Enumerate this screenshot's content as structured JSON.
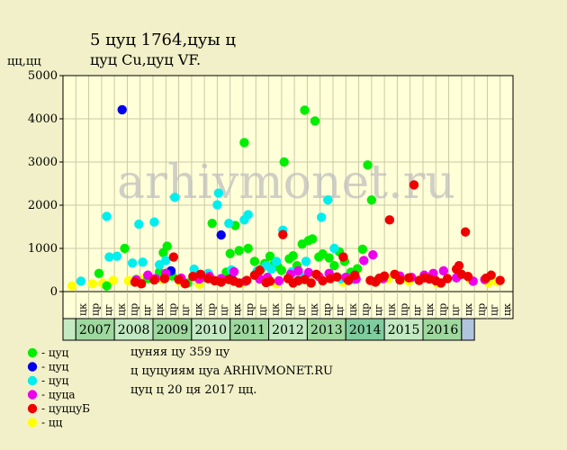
{
  "header": {
    "title": "5  цуц 1764,цуы ц",
    "subtitle": "цуц Cu,цуц VF.",
    "y_unit": "цц,цц"
  },
  "watermark": "arhivmonet.ru",
  "legend": [
    {
      "color": "#00ee00",
      "label": "- цуц"
    },
    {
      "color": "#0000ee",
      "label": "- цуц"
    },
    {
      "color": "#00eeee",
      "label": "- цуц"
    },
    {
      "color": "#ee00ee",
      "label": "- цуца"
    },
    {
      "color": "#ee0000",
      "label": "- цуццуБ"
    },
    {
      "color": "#ffff00",
      "label": "- цц"
    }
  ],
  "notes": [
    "цуняя цу 359 цу",
    "ц цуцуиям цуа ARHIVMONET.RU",
    "цуц ц 20 ця 2017 цц."
  ],
  "chart_data": {
    "type": "scatter",
    "ylim": [
      0,
      5000
    ],
    "yticks": [
      0,
      1000,
      2000,
      3000,
      4000,
      5000
    ],
    "year_bands": [
      {
        "label": "",
        "color": "#c4eac4"
      },
      {
        "label": "2007",
        "color": "#9fd89f"
      },
      {
        "label": "2008",
        "color": "#c4eac4"
      },
      {
        "label": "2009",
        "color": "#9fd89f"
      },
      {
        "label": "2010",
        "color": "#c4eac4"
      },
      {
        "label": "2011",
        "color": "#9fd89f"
      },
      {
        "label": "2012",
        "color": "#c4eac4"
      },
      {
        "label": "2013",
        "color": "#9fd89f"
      },
      {
        "label": "2014",
        "color": "#7fcc9f"
      },
      {
        "label": "2015",
        "color": "#c4eac4"
      },
      {
        "label": "2016",
        "color": "#9fd89f"
      },
      {
        "label": "",
        "color": "#b0c4de"
      }
    ],
    "year_band_months": [
      1,
      3,
      3,
      3,
      3,
      3,
      3,
      3,
      3,
      3,
      3,
      1
    ],
    "x_tick_labels": [
      "цк",
      "цр",
      "цг",
      "цк",
      "цр",
      "цг",
      "цк",
      "цр",
      "цг",
      "цк",
      "цр",
      "цг",
      "цк",
      "цр",
      "цг",
      "цк",
      "цр",
      "цг",
      "цк",
      "цр",
      "цг",
      "цк",
      "цр",
      "цг",
      "цк",
      "цр",
      "цг",
      "цк",
      "цр",
      "цг",
      "цк",
      "цр",
      "цг",
      "цк"
    ],
    "series": [
      {
        "color": "#ffff00",
        "points": [
          [
            0.2,
            130
          ],
          [
            1.8,
            180
          ],
          [
            2.6,
            200
          ],
          [
            3.4,
            260
          ],
          [
            4.6,
            250
          ],
          [
            5.8,
            300
          ],
          [
            7.2,
            280
          ],
          [
            8.6,
            230
          ],
          [
            10.1,
            170
          ],
          [
            11.4,
            260
          ],
          [
            13.4,
            200
          ],
          [
            16.1,
            180
          ],
          [
            18.6,
            260
          ],
          [
            21.3,
            220
          ],
          [
            24.8,
            300
          ],
          [
            26.4,
            240
          ],
          [
            28.6,
            200
          ],
          [
            31.2,
            270
          ],
          [
            32.6,
            210
          ],
          [
            33.3,
            230
          ]
        ]
      },
      {
        "color": "#00ee00",
        "points": [
          [
            2.3,
            420
          ],
          [
            2.9,
            130
          ],
          [
            4.3,
            1000
          ],
          [
            5.2,
            280
          ],
          [
            6.1,
            300
          ],
          [
            7.0,
            450
          ],
          [
            7.3,
            900
          ],
          [
            7.6,
            1050
          ],
          [
            8.0,
            360
          ],
          [
            9.2,
            200
          ],
          [
            10.6,
            320
          ],
          [
            11.1,
            1580
          ],
          [
            11.6,
            250
          ],
          [
            12.2,
            450
          ],
          [
            12.5,
            880
          ],
          [
            12.9,
            1530
          ],
          [
            13.2,
            950
          ],
          [
            13.6,
            3450
          ],
          [
            13.9,
            1000
          ],
          [
            14.4,
            700
          ],
          [
            14.9,
            520
          ],
          [
            15.2,
            650
          ],
          [
            15.6,
            820
          ],
          [
            15.9,
            620
          ],
          [
            16.2,
            580
          ],
          [
            16.5,
            490
          ],
          [
            16.7,
            3000
          ],
          [
            17.1,
            760
          ],
          [
            17.4,
            830
          ],
          [
            17.7,
            600
          ],
          [
            18.1,
            1100
          ],
          [
            18.3,
            4200
          ],
          [
            18.6,
            1180
          ],
          [
            18.9,
            1220
          ],
          [
            19.1,
            3950
          ],
          [
            19.4,
            800
          ],
          [
            19.7,
            870
          ],
          [
            20.2,
            780
          ],
          [
            20.6,
            600
          ],
          [
            21.0,
            920
          ],
          [
            21.4,
            700
          ],
          [
            21.9,
            450
          ],
          [
            22.4,
            530
          ],
          [
            22.8,
            980
          ],
          [
            23.2,
            2930
          ],
          [
            23.5,
            2120
          ],
          [
            23.9,
            250
          ]
        ]
      },
      {
        "color": "#0000ee",
        "points": [
          [
            4.1,
            4210
          ],
          [
            7.9,
            480
          ],
          [
            11.8,
            1310
          ],
          [
            12.6,
            300
          ]
        ]
      },
      {
        "color": "#00eeee",
        "points": [
          [
            0.9,
            240
          ],
          [
            2.9,
            1740
          ],
          [
            3.1,
            800
          ],
          [
            3.7,
            820
          ],
          [
            4.9,
            660
          ],
          [
            5.4,
            1560
          ],
          [
            5.7,
            680
          ],
          [
            6.6,
            1610
          ],
          [
            7.0,
            620
          ],
          [
            7.5,
            720
          ],
          [
            8.2,
            2180
          ],
          [
            9.7,
            520
          ],
          [
            10.8,
            420
          ],
          [
            11.5,
            2010
          ],
          [
            11.6,
            2280
          ],
          [
            12.4,
            1580
          ],
          [
            12.6,
            500
          ],
          [
            13.6,
            1660
          ],
          [
            13.9,
            1780
          ],
          [
            14.6,
            480
          ],
          [
            15.3,
            600
          ],
          [
            15.7,
            520
          ],
          [
            16.1,
            700
          ],
          [
            16.6,
            1420
          ],
          [
            17.3,
            460
          ],
          [
            17.9,
            380
          ],
          [
            18.4,
            700
          ],
          [
            19.6,
            1720
          ],
          [
            20.1,
            2120
          ],
          [
            20.6,
            1000
          ],
          [
            21.1,
            300
          ],
          [
            22.1,
            280
          ]
        ]
      },
      {
        "color": "#ee00ee",
        "points": [
          [
            5.2,
            270
          ],
          [
            6.1,
            380
          ],
          [
            6.7,
            300
          ],
          [
            7.5,
            420
          ],
          [
            8.7,
            310
          ],
          [
            10.1,
            290
          ],
          [
            10.9,
            350
          ],
          [
            11.8,
            300
          ],
          [
            12.8,
            460
          ],
          [
            13.7,
            240
          ],
          [
            14.8,
            290
          ],
          [
            15.4,
            330
          ],
          [
            16.3,
            250
          ],
          [
            17.2,
            400
          ],
          [
            17.8,
            480
          ],
          [
            18.6,
            440
          ],
          [
            19.4,
            350
          ],
          [
            20.2,
            420
          ],
          [
            21.5,
            330
          ],
          [
            22.3,
            290
          ],
          [
            22.9,
            720
          ],
          [
            23.6,
            850
          ],
          [
            24.4,
            300
          ],
          [
            25.7,
            360
          ],
          [
            26.6,
            330
          ],
          [
            27.6,
            380
          ],
          [
            28.3,
            420
          ],
          [
            29.1,
            480
          ],
          [
            30.1,
            320
          ],
          [
            31.4,
            240
          ],
          [
            32.3,
            280
          ]
        ]
      },
      {
        "color": "#ee0000",
        "points": [
          [
            5.1,
            220
          ],
          [
            5.6,
            180
          ],
          [
            6.6,
            270
          ],
          [
            7.4,
            300
          ],
          [
            8.1,
            800
          ],
          [
            8.5,
            280
          ],
          [
            9.0,
            180
          ],
          [
            9.6,
            350
          ],
          [
            10.2,
            400
          ],
          [
            10.8,
            300
          ],
          [
            11.3,
            250
          ],
          [
            11.8,
            220
          ],
          [
            12.4,
            280
          ],
          [
            12.8,
            240
          ],
          [
            13.2,
            200
          ],
          [
            13.8,
            260
          ],
          [
            14.4,
            380
          ],
          [
            14.8,
            490
          ],
          [
            15.3,
            210
          ],
          [
            15.6,
            240
          ],
          [
            16.6,
            1320
          ],
          [
            17.0,
            300
          ],
          [
            17.4,
            200
          ],
          [
            17.8,
            250
          ],
          [
            18.3,
            280
          ],
          [
            18.8,
            200
          ],
          [
            19.2,
            400
          ],
          [
            19.7,
            250
          ],
          [
            20.3,
            300
          ],
          [
            20.8,
            340
          ],
          [
            21.3,
            800
          ],
          [
            21.7,
            260
          ],
          [
            22.2,
            380
          ],
          [
            23.4,
            260
          ],
          [
            23.8,
            220
          ],
          [
            24.1,
            310
          ],
          [
            24.5,
            360
          ],
          [
            24.9,
            1660
          ],
          [
            25.3,
            400
          ],
          [
            25.7,
            270
          ],
          [
            26.4,
            320
          ],
          [
            26.8,
            2470
          ],
          [
            27.2,
            260
          ],
          [
            27.6,
            320
          ],
          [
            28.0,
            290
          ],
          [
            28.5,
            250
          ],
          [
            28.9,
            200
          ],
          [
            29.4,
            300
          ],
          [
            30.1,
            520
          ],
          [
            30.3,
            600
          ],
          [
            30.5,
            400
          ],
          [
            30.8,
            1380
          ],
          [
            31.0,
            350
          ],
          [
            32.4,
            310
          ],
          [
            32.8,
            380
          ],
          [
            33.5,
            260
          ]
        ]
      }
    ]
  }
}
